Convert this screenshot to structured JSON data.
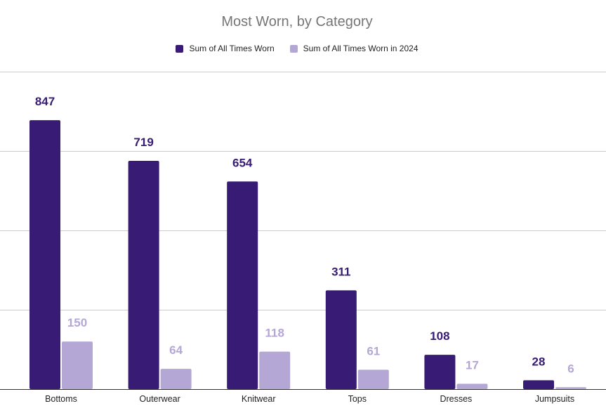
{
  "chart_data": {
    "type": "bar",
    "title": "Most Worn, by Category",
    "xlabel": "",
    "ylabel": "",
    "categories": [
      "Bottoms",
      "Outerwear",
      "Knitwear",
      "Tops",
      "Dresses",
      "Jumpsuits"
    ],
    "series": [
      {
        "name": "Sum of All Times Worn",
        "values": [
          847,
          719,
          654,
          311,
          108,
          28
        ],
        "color": "#371b74"
      },
      {
        "name": "Sum of All Times Worn in 2024",
        "values": [
          150,
          64,
          118,
          61,
          17,
          6
        ],
        "color": "#b4a7d6"
      }
    ],
    "ylim": [
      0,
      1000
    ],
    "grid": true,
    "legend": "top-center",
    "data_labels": true
  }
}
